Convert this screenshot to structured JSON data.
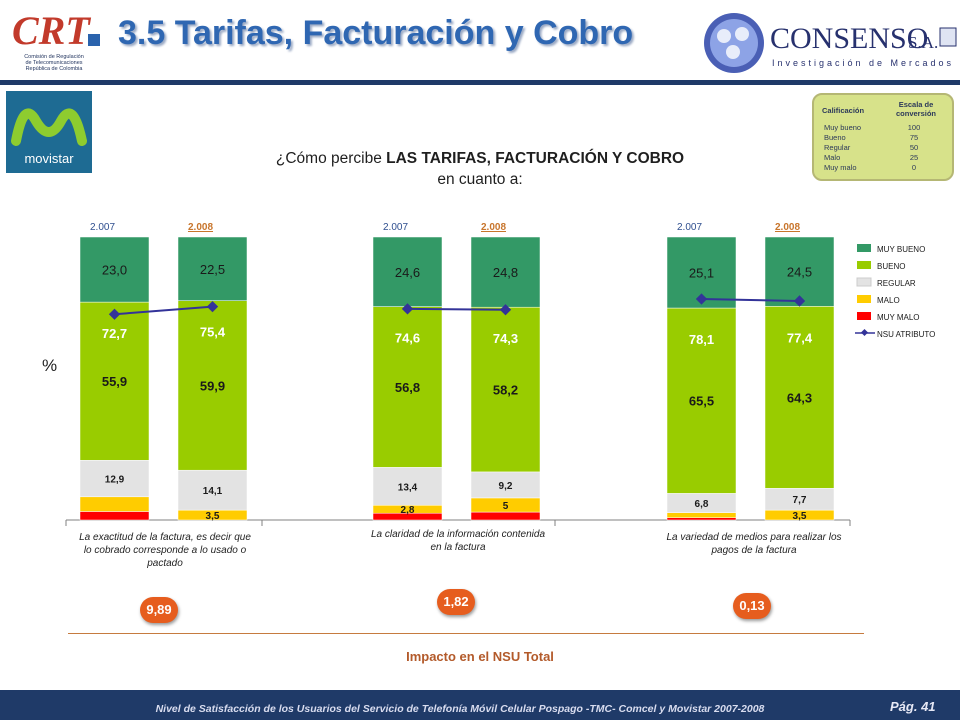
{
  "header": {
    "title": "3.5 Tarifas, Facturación y Cobro",
    "crt_logo_text": "CRT",
    "crt_org_lines": [
      "Comisión de Regulación",
      "de Telecomunicaciones",
      "República de Colombia"
    ],
    "consenso_name": "CONSENSO",
    "consenso_suffix": "S.A.",
    "consenso_tagline": "Investigación de Mercados"
  },
  "brand": {
    "operator_label": "movistar"
  },
  "question": {
    "prefix": "¿Cómo percibe ",
    "emphasis": "LAS TARIFAS, FACTURACIÓN Y COBRO",
    "line2": "en cuanto a:"
  },
  "scale_table": {
    "header_col1": "Calificación",
    "header_col2": "Escala de conversión",
    "rows": [
      {
        "label": "Muy bueno",
        "value": "100"
      },
      {
        "label": "Bueno",
        "value": "75"
      },
      {
        "label": "Regular",
        "value": "50"
      },
      {
        "label": "Malo",
        "value": "25"
      },
      {
        "label": "Muy malo",
        "value": "0"
      }
    ]
  },
  "y_axis_label": "%",
  "chart_data": {
    "type": "bar",
    "stacked": true,
    "groups": [
      {
        "category": "La exactitud de la factura, es decir que lo cobrado corresponde a lo usado o pactado",
        "impact": "9,89",
        "bars": [
          {
            "year": "2.007",
            "MUY BUENO": 23.0,
            "BUENO": 55.9,
            "REGULAR": 12.9,
            "MALO": 5.2,
            "MUY MALO": 3.0,
            "NSU": 72.7,
            "labels": {
              "MUY BUENO": "23,0",
              "BUENO": "55,9",
              "REGULAR": "12,9",
              "MALO": "",
              "MUY MALO": "",
              "NSU": "72,7"
            }
          },
          {
            "year": "2.008",
            "MUY BUENO": 22.5,
            "BUENO": 59.9,
            "REGULAR": 14.1,
            "MALO": 3.5,
            "MUY MALO": 0.0,
            "NSU": 75.4,
            "labels": {
              "MUY BUENO": "22,5",
              "BUENO": "59,9",
              "REGULAR": "14,1",
              "MALO": "3,5",
              "MUY MALO": "",
              "NSU": "75,4"
            }
          }
        ]
      },
      {
        "category": "La claridad de la información contenida en la factura",
        "impact": "1,82",
        "bars": [
          {
            "year": "2.007",
            "MUY BUENO": 24.6,
            "BUENO": 56.8,
            "REGULAR": 13.4,
            "MALO": 2.8,
            "MUY MALO": 2.4,
            "NSU": 74.6,
            "labels": {
              "MUY BUENO": "24,6",
              "BUENO": "56,8",
              "REGULAR": "13,4",
              "MALO": "2,8",
              "MUY MALO": "",
              "NSU": "74,6"
            }
          },
          {
            "year": "2.008",
            "MUY BUENO": 24.8,
            "BUENO": 58.2,
            "REGULAR": 9.2,
            "MALO": 5.0,
            "MUY MALO": 2.8,
            "NSU": 74.3,
            "labels": {
              "MUY BUENO": "24,8",
              "BUENO": "58,2",
              "REGULAR": "9,2",
              "MALO": "5",
              "MUY MALO": "",
              "NSU": "74,3"
            }
          }
        ]
      },
      {
        "category": "La variedad de medios para realizar los pagos de la factura",
        "impact": "0,13",
        "bars": [
          {
            "year": "2.007",
            "MUY BUENO": 25.1,
            "BUENO": 65.5,
            "REGULAR": 6.8,
            "MALO": 1.8,
            "MUY MALO": 0.8,
            "NSU": 78.1,
            "labels": {
              "MUY BUENO": "25,1",
              "BUENO": "65,5",
              "REGULAR": "6,8",
              "MALO": "",
              "MUY MALO": "",
              "NSU": "78,1"
            }
          },
          {
            "year": "2.008",
            "MUY BUENO": 24.5,
            "BUENO": 64.3,
            "REGULAR": 7.7,
            "MALO": 3.5,
            "MUY MALO": 0.0,
            "NSU": 77.4,
            "labels": {
              "MUY BUENO": "24,5",
              "BUENO": "64,3",
              "REGULAR": "7,7",
              "MALO": "3,5",
              "MUY MALO": "",
              "NSU": "77,4"
            }
          }
        ]
      }
    ],
    "series": [
      {
        "name": "MUY BUENO",
        "color": "#339966"
      },
      {
        "name": "BUENO",
        "color": "#99cc00"
      },
      {
        "name": "REGULAR",
        "color": "#e3e3e3"
      },
      {
        "name": "MALO",
        "color": "#ffcc00"
      },
      {
        "name": "MUY MALO",
        "color": "#ff0000"
      }
    ],
    "line_series": {
      "name": "NSU ATRIBUTO",
      "color": "#333399"
    },
    "ylim": [
      0,
      100
    ],
    "legend_position": "right",
    "grid": false
  },
  "impact_title": "Impacto en el NSU Total",
  "footer": {
    "text": "Nivel de Satisfacción de los Usuarios del Servicio de Telefonía Móvil Celular Pospago -TMC- Comcel y Movistar 2007-2008",
    "page": "Pág. 41"
  }
}
